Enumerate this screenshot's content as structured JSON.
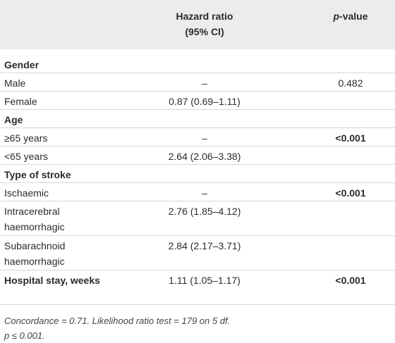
{
  "header": {
    "hazard_ratio": [
      "Hazard ratio",
      "(95% CI)"
    ],
    "p_value": [
      "p",
      "-value"
    ]
  },
  "table": {
    "rows": [
      {
        "cells": [
          "Gender",
          null,
          null
        ],
        "bold": true
      },
      {
        "cells": [
          "Male",
          "–",
          "0.482"
        ],
        "bold": false
      },
      {
        "cells": [
          "Female",
          "0.87 (0.69–1.11)",
          null
        ],
        "bold": false
      },
      {
        "cells": [
          "Age",
          null,
          null
        ],
        "bold": true
      },
      {
        "cells": [
          "≥65 years",
          "–",
          "<0.001"
        ],
        "bold": false,
        "bold_p": true
      },
      {
        "cells": [
          "<65 years",
          "2.64 (2.06–3.38)",
          null
        ],
        "bold": false
      },
      {
        "cells": [
          "Type of stroke",
          null,
          null
        ],
        "bold": true
      },
      {
        "cells": [
          "Ischaemic",
          "–",
          "<0.001"
        ],
        "bold": false,
        "bold_p": true
      },
      {
        "cells": [
          "Intracerebral haemorrhagic",
          "2.76 (1.85–4.12)",
          null
        ],
        "bold": false
      },
      {
        "cells": [
          "Subarachnoid haemorrhagic",
          "2.84 (2.17–3.71)",
          null
        ],
        "bold": false
      },
      {
        "cells": [
          "Hospital stay, weeks",
          "1.11 (1.05–1.17)",
          "<0.001"
        ],
        "bold": true,
        "bold_p": true
      }
    ]
  },
  "footnote": [
    "Concordance = 0.71. Likelihood ratio test = 179 on 5 df.",
    "p ≤ 0.001."
  ]
}
